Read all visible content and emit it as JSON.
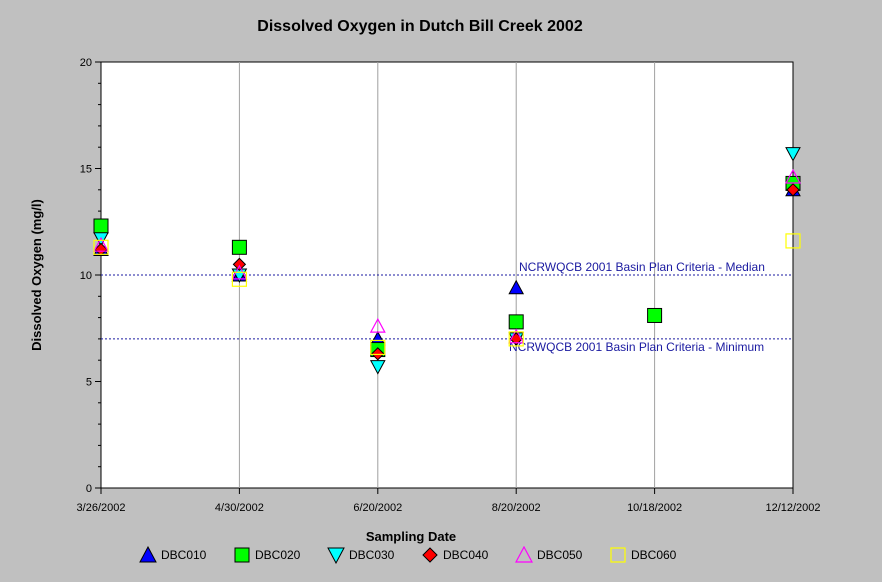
{
  "chart_data": {
    "type": "scatter",
    "title": "Dissolved Oxygen in Dutch Bill Creek 2002",
    "xlabel": "Sampling Date",
    "ylabel": "Dissolved Oxygen (mg/l)",
    "ylim": [
      0,
      20
    ],
    "yticks": [
      "0",
      "5",
      "10",
      "15",
      "20"
    ],
    "categories": [
      "3/26/2002",
      "4/30/2002",
      "6/20/2002",
      "8/20/2002",
      "10/18/2002",
      "12/12/2002"
    ],
    "grid": "vertical",
    "legend_position": "bottom",
    "reference_lines": [
      {
        "label": "NCRWQCB 2001 Basin Plan Criteria - Median",
        "y": 10,
        "color": "#1a1aa0"
      },
      {
        "label": "NCRWQCB 2001 Basin Plan Criteria - Minimum",
        "y": 7,
        "color": "#1a1aa0"
      }
    ],
    "series": [
      {
        "name": "DBC010",
        "marker": "triangle-up",
        "color": "#0000ff",
        "filled": true,
        "values": [
          11.2,
          10.0,
          7.0,
          9.4,
          null,
          14.0
        ]
      },
      {
        "name": "DBC020",
        "marker": "square",
        "color": "#00ff00",
        "filled": true,
        "values": [
          12.3,
          11.3,
          6.5,
          7.8,
          8.1,
          14.3
        ]
      },
      {
        "name": "DBC030",
        "marker": "triangle-down",
        "color": "#00ffff",
        "filled": true,
        "values": [
          11.7,
          10.0,
          5.7,
          7.0,
          null,
          15.7
        ]
      },
      {
        "name": "DBC040",
        "marker": "diamond",
        "color": "#ff0000",
        "filled": true,
        "values": [
          11.2,
          10.5,
          6.3,
          7.0,
          null,
          14.0
        ]
      },
      {
        "name": "DBC050",
        "marker": "triangle-up",
        "color": "#ff00ff",
        "filled": false,
        "values": [
          11.4,
          10.1,
          7.6,
          7.1,
          null,
          14.6
        ]
      },
      {
        "name": "DBC060",
        "marker": "square",
        "color": "#ffff00",
        "filled": false,
        "values": [
          11.3,
          9.8,
          6.6,
          7.0,
          null,
          11.6
        ]
      }
    ]
  }
}
